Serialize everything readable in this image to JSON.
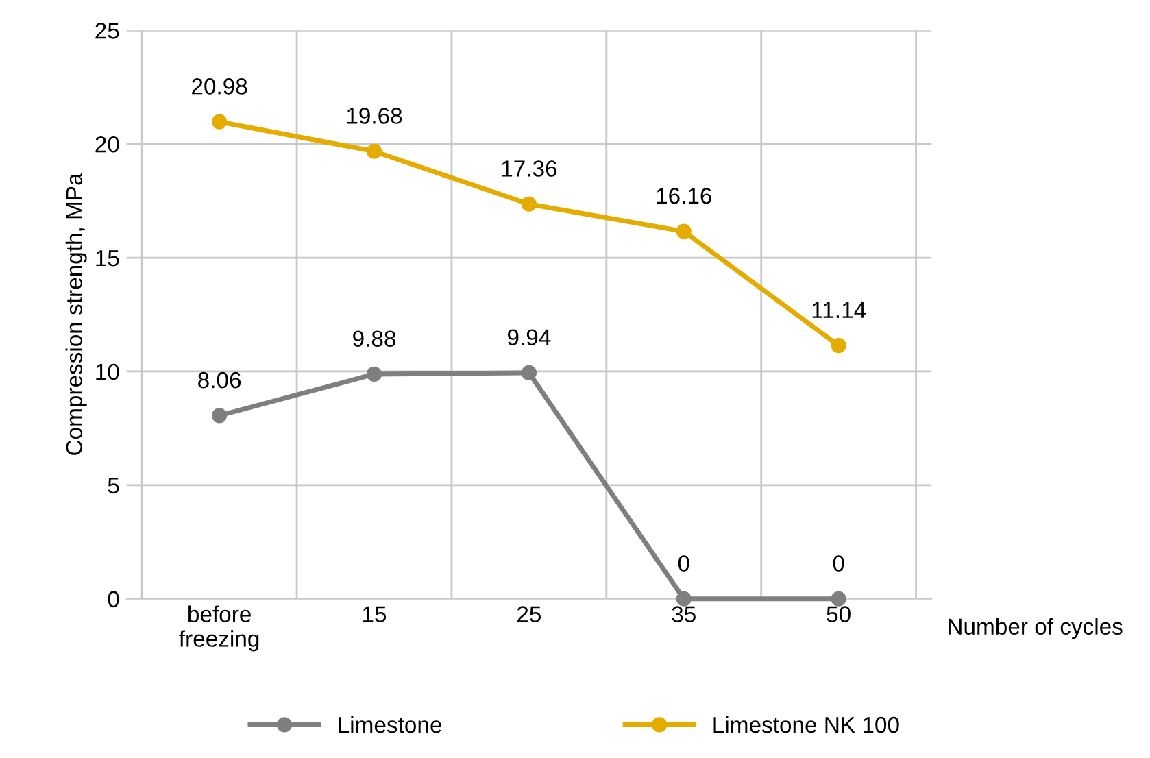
{
  "chart_data": {
    "type": "line",
    "ylabel": "Compression strength, MPa",
    "xlabel": "Number of cycles",
    "categories": [
      "before\nfreezing",
      "15",
      "25",
      "35",
      "50"
    ],
    "series": [
      {
        "name": "Limestone",
        "color": "#7f7f7f",
        "values": [
          8.06,
          9.88,
          9.94,
          0,
          0
        ]
      },
      {
        "name": "Limestone NK 100",
        "color": "#e5ac00",
        "values": [
          20.98,
          19.68,
          17.36,
          16.16,
          11.14
        ]
      }
    ],
    "ylim": [
      0,
      25
    ],
    "yticks": [
      0,
      5,
      10,
      15,
      20,
      25
    ],
    "grid": true,
    "legend": "bottom",
    "marker": "circle",
    "line_style": "solid",
    "data_labels": true
  }
}
